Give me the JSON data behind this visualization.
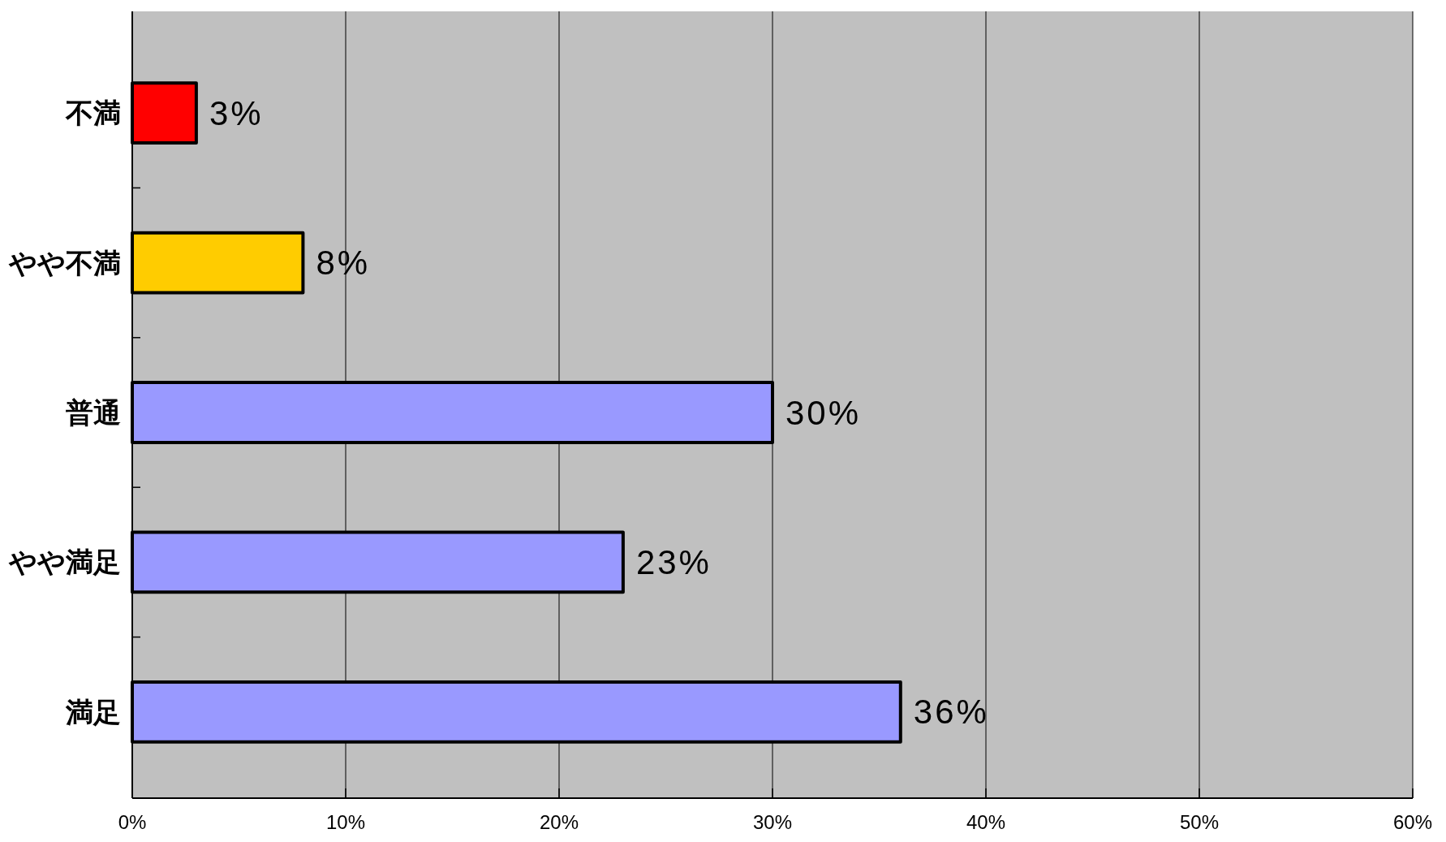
{
  "chart_data": {
    "type": "bar",
    "orientation": "horizontal",
    "categories": [
      "不満",
      "やや不満",
      "普通",
      "やや満足",
      "満足"
    ],
    "values": [
      3,
      8,
      30,
      23,
      36
    ],
    "colors": [
      "#ff0000",
      "#ffcc00",
      "#9999ff",
      "#9999ff",
      "#9999ff"
    ],
    "value_labels": [
      "3%",
      "8%",
      "30%",
      "23%",
      "36%"
    ],
    "xlim": [
      0,
      60
    ],
    "xticks": [
      {
        "value": 0,
        "label": "0%"
      },
      {
        "value": 10,
        "label": "10%"
      },
      {
        "value": 20,
        "label": "20%"
      },
      {
        "value": 30,
        "label": "30%"
      },
      {
        "value": 40,
        "label": "40%"
      },
      {
        "value": 50,
        "label": "50%"
      },
      {
        "value": 60,
        "label": "60%"
      }
    ],
    "grid": "x"
  }
}
